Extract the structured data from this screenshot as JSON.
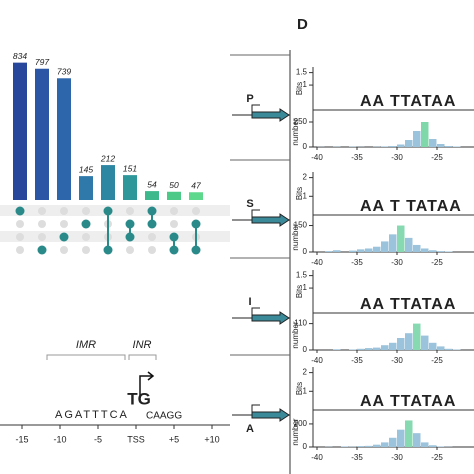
{
  "panel_label": "D",
  "chart_data": [
    {
      "type": "bar",
      "values": [
        834,
        797,
        739,
        145,
        212,
        151,
        54,
        50,
        47
      ],
      "colors": [
        "#27479c",
        "#2b56a6",
        "#2e66ab",
        "#2f78aa",
        "#2d87a2",
        "#2d979a",
        "#3db88c",
        "#4cc987",
        "#5dd88c"
      ],
      "ylim": [
        0,
        850
      ],
      "membership": [
        [
          0
        ],
        [
          3
        ],
        [
          2
        ],
        [
          1
        ],
        [
          0,
          3
        ],
        [
          1,
          2
        ],
        [
          0,
          1
        ],
        [
          2,
          3
        ],
        [
          1,
          3
        ]
      ]
    },
    {
      "type": "logo",
      "categories": [
        "-15",
        "-10",
        "-5",
        "TSS",
        "+5",
        "+10"
      ],
      "annotations": [
        "IMR",
        "INR"
      ],
      "letters": "AGATTTCA",
      "core": "TG",
      "tail": "CAAGG"
    },
    {
      "type": "histogram",
      "label": "P",
      "ylabel": "number",
      "logo_ylabel": "Bits",
      "logo_yticks": [
        1,
        1.5
      ],
      "logo": "AA TTATAA",
      "bins": [
        -40,
        -39,
        -38,
        -37,
        -36,
        -35,
        -34,
        -33,
        -32,
        -31,
        -30,
        -29,
        -28,
        -27,
        -26,
        -25,
        -24,
        -23,
        -22
      ],
      "values": [
        2,
        0,
        3,
        0,
        4,
        2,
        0,
        3,
        6,
        10,
        25,
        70,
        160,
        250,
        80,
        30,
        10,
        5
      ],
      "ylim": [
        0,
        300
      ],
      "yticks": [
        0,
        250
      ],
      "xticks": [
        -40,
        -35,
        -30,
        -25
      ],
      "color": "#7fd8aa"
    },
    {
      "type": "histogram",
      "label": "S",
      "ylabel": "number",
      "logo_ylabel": "Bits",
      "logo_yticks": [
        1,
        2
      ],
      "logo": "AA T TATAA",
      "bins": [
        -40,
        -39,
        -38,
        -37,
        -36,
        -35,
        -34,
        -33,
        -32,
        -31,
        -30,
        -29,
        -28,
        -27,
        -26,
        -25,
        -24,
        -23,
        -22
      ],
      "values": [
        0,
        5,
        10,
        0,
        8,
        15,
        20,
        30,
        60,
        100,
        150,
        80,
        40,
        20,
        10,
        5,
        3,
        0
      ],
      "ylim": [
        0,
        170
      ],
      "yticks": [
        0,
        150
      ],
      "xticks": [
        -40,
        -35,
        -30,
        -25
      ],
      "color": "#86d9b0"
    },
    {
      "type": "histogram",
      "label": "I",
      "ylabel": "number",
      "logo_ylabel": "Bits",
      "logo_yticks": [
        1,
        1.5
      ],
      "logo": "AA TTATAA",
      "bins": [
        -40,
        -39,
        -38,
        -37,
        -36,
        -35,
        -34,
        -33,
        -32,
        -31,
        -30,
        -29,
        -28,
        -27,
        -26,
        -25,
        -24,
        -23,
        -22
      ],
      "values": [
        0,
        0,
        3,
        0,
        2,
        5,
        8,
        10,
        20,
        30,
        50,
        70,
        110,
        60,
        30,
        15,
        5,
        2
      ],
      "ylim": [
        0,
        125
      ],
      "yticks": [
        0,
        110
      ],
      "xticks": [
        -40,
        -35,
        -30,
        -25
      ],
      "color": "#86d9b0"
    },
    {
      "type": "histogram",
      "label": "A",
      "ylabel": "number",
      "logo_ylabel": "Bits",
      "logo_yticks": [
        1,
        2
      ],
      "logo": "AA TTATAA",
      "bins": [
        -40,
        -39,
        -38,
        -37,
        -36,
        -35,
        -34,
        -33,
        -32,
        -31,
        -30,
        -29,
        -28,
        -27,
        -26,
        -25,
        -24,
        -23,
        -22
      ],
      "values": [
        0,
        2,
        0,
        5,
        3,
        8,
        10,
        20,
        40,
        80,
        150,
        230,
        120,
        40,
        15,
        5,
        2,
        0
      ],
      "ylim": [
        0,
        260
      ],
      "yticks": [
        0,
        200
      ],
      "xticks": [
        -40,
        -35,
        -30,
        -25
      ],
      "color": "#86d9b0"
    }
  ]
}
